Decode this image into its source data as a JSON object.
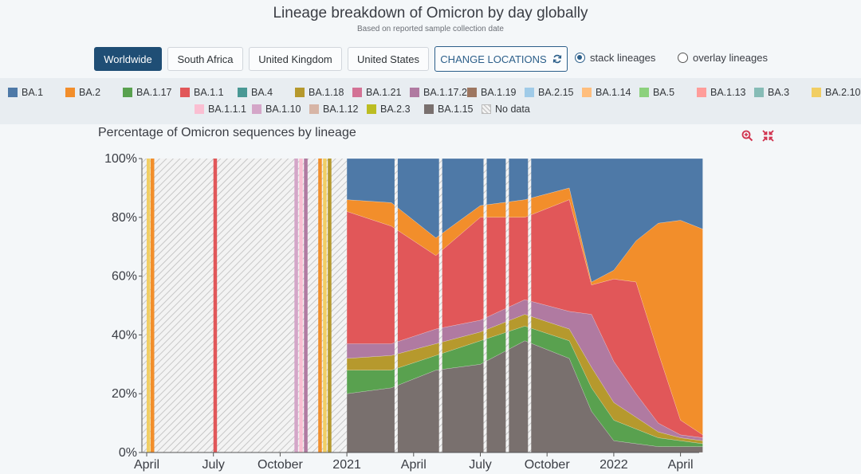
{
  "header": {
    "title": "Lineage breakdown of Omicron by day globally",
    "subtitle": "Based on reported sample collection date"
  },
  "locations": [
    "Worldwide",
    "South Africa",
    "United Kingdom",
    "United States"
  ],
  "change_locations_label": "CHANGE LOCATIONS",
  "view_options": [
    {
      "label": "stack lineages",
      "selected": true
    },
    {
      "label": "overlay lineages",
      "selected": false
    }
  ],
  "legend": [
    {
      "label": "BA.1",
      "color": "#4e79a7"
    },
    {
      "label": "BA.2",
      "color": "#f28e2b"
    },
    {
      "label": "BA.1.17",
      "color": "#59a14f"
    },
    {
      "label": "BA.1.1",
      "color": "#e15759"
    },
    {
      "label": "BA.4",
      "color": "#499894"
    },
    {
      "label": "BA.1.18",
      "color": "#b6992d"
    },
    {
      "label": "BA.1.21",
      "color": "#d37295"
    },
    {
      "label": "BA.1.17.2",
      "color": "#b07aa1"
    },
    {
      "label": "BA.1.19",
      "color": "#9d7660"
    },
    {
      "label": "BA.2.15",
      "color": "#a0cbe8"
    },
    {
      "label": "BA.1.14",
      "color": "#ffbe7d"
    },
    {
      "label": "BA.5",
      "color": "#8cd17d"
    },
    {
      "label": "BA.1.13",
      "color": "#ff9d9a"
    },
    {
      "label": "BA.3",
      "color": "#86bcb6"
    },
    {
      "label": "BA.2.10",
      "color": "#f1ce63"
    },
    {
      "label": "BA.1.1.1",
      "color": "#fabfd2"
    },
    {
      "label": "BA.1.10",
      "color": "#d4a6c8"
    },
    {
      "label": "BA.1.12",
      "color": "#d7b5a6"
    },
    {
      "label": "BA.2.3",
      "color": "#bcbd22"
    },
    {
      "label": "BA.1.15",
      "color": "#79706e"
    },
    {
      "label": "No data",
      "color": "nodata"
    }
  ],
  "plot_title": "Percentage of Omicron sequences by lineage",
  "icons": [
    "zoom-in-icon",
    "collapse-icon",
    "refresh-icon"
  ],
  "chart_data": {
    "type": "area",
    "stacked": true,
    "x_tick_labels": [
      "April",
      "July",
      "October",
      "2021",
      "April",
      "July",
      "October",
      "2022",
      "April"
    ],
    "y_tick_labels": [
      "0%",
      "20%",
      "40%",
      "60%",
      "80%",
      "100%"
    ],
    "ylim": [
      0,
      100
    ],
    "no_data_periods": [
      {
        "from": "Apr 2020",
        "to": "Dec 2020",
        "note": "hatched no-data with sparse single-lineage bars"
      }
    ],
    "sparse_2020_bars": [
      {
        "date": "Apr 2020",
        "lineage": "BA.2.10",
        "value": 100
      },
      {
        "date": "Apr 2020",
        "lineage": "BA.2",
        "value": 100
      },
      {
        "date": "Jul 2020",
        "lineage": "BA.1.1",
        "value": 100
      },
      {
        "date": "Nov 2020",
        "lineage": "BA.1.10",
        "value": 100
      },
      {
        "date": "Nov 2020",
        "lineage": "BA.1.1.1",
        "value": 100
      },
      {
        "date": "Nov 2020",
        "lineage": "BA.1.17.2",
        "value": 100
      },
      {
        "date": "Dec 2020",
        "lineage": "BA.2",
        "value": 100
      },
      {
        "date": "Dec 2020",
        "lineage": "BA.2.10",
        "value": 100
      },
      {
        "date": "Dec 2020",
        "lineage": "BA.1.18",
        "value": 100
      }
    ],
    "x": [
      "Jan 2021",
      "Mar 2021",
      "May 2021",
      "Jul 2021",
      "Sep 2021",
      "Nov 2021",
      "Dec 2021",
      "Jan 2022",
      "Feb 2022",
      "Mar 2022",
      "Apr 2022",
      "May 2022"
    ],
    "series": [
      {
        "name": "BA.1.15",
        "values": [
          20,
          22,
          28,
          30,
          38,
          32,
          14,
          4,
          3,
          2,
          2,
          2
        ]
      },
      {
        "name": "BA.1.17",
        "values": [
          8,
          6,
          5,
          8,
          5,
          6,
          8,
          7,
          5,
          3,
          2,
          1
        ]
      },
      {
        "name": "BA.1.18",
        "values": [
          4,
          5,
          4,
          3,
          4,
          4,
          7,
          6,
          4,
          2,
          1,
          1
        ]
      },
      {
        "name": "BA.1.17.2",
        "values": [
          5,
          4,
          5,
          4,
          5,
          6,
          18,
          14,
          8,
          3,
          1,
          1
        ]
      },
      {
        "name": "BA.1.1",
        "values": [
          45,
          40,
          25,
          35,
          28,
          38,
          10,
          28,
          38,
          24,
          5,
          1
        ]
      },
      {
        "name": "BA.2",
        "values": [
          4,
          8,
          6,
          4,
          6,
          4,
          1,
          3,
          14,
          44,
          68,
          70
        ]
      },
      {
        "name": "BA.1",
        "values": [
          14,
          15,
          27,
          16,
          14,
          10,
          42,
          38,
          28,
          22,
          21,
          24
        ]
      }
    ]
  }
}
